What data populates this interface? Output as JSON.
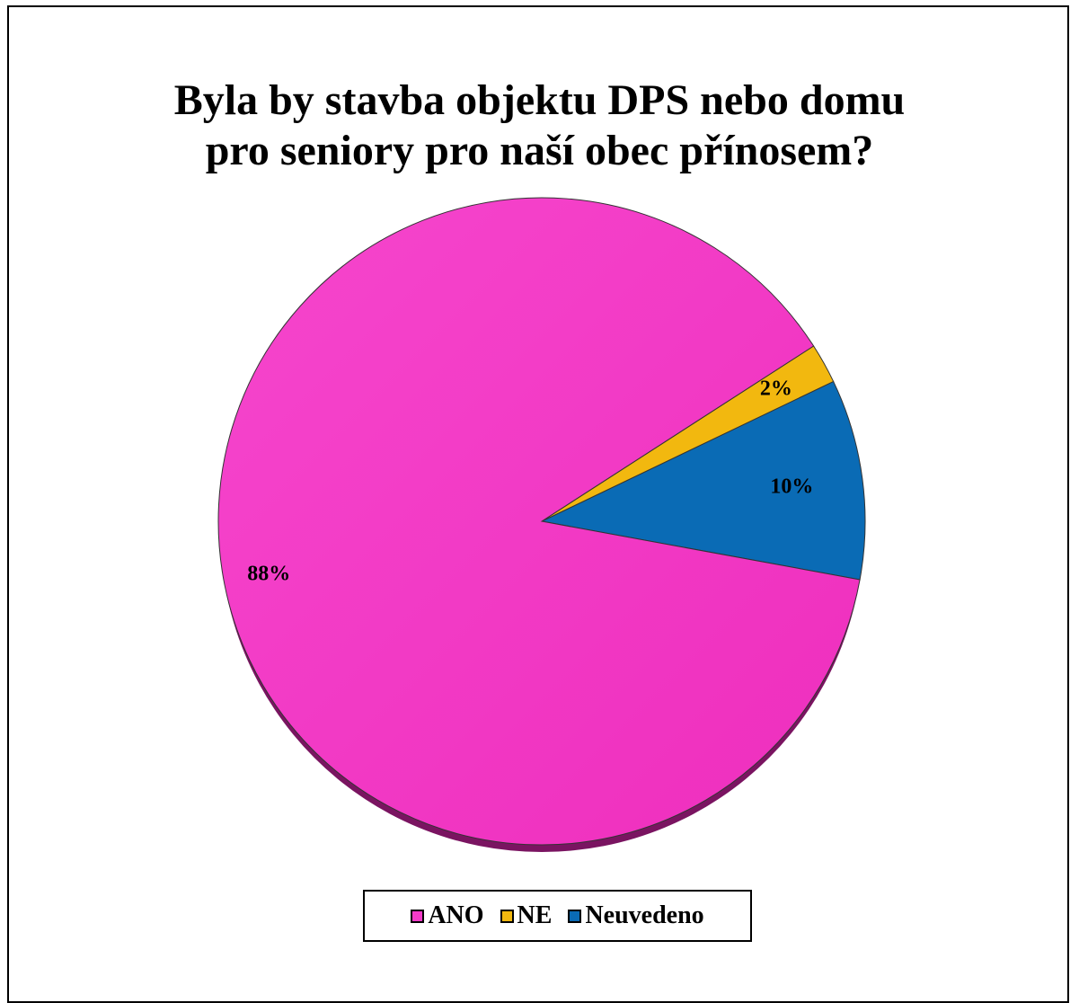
{
  "chart_data": {
    "type": "pie",
    "title_lines": [
      "Byla by stavba objektu DPS nebo domu",
      "pro seniory pro naší obec přínosem?"
    ],
    "slices": [
      {
        "label": "ANO",
        "value": 88,
        "display": "88%",
        "color": "#F53BC9"
      },
      {
        "label": "NE",
        "value": 2,
        "display": "2%",
        "color": "#F2B80F"
      },
      {
        "label": "Neuvedeno",
        "value": 10,
        "display": "10%",
        "color": "#0A6BB5"
      }
    ],
    "legend_position": "bottom",
    "show_data_labels": true
  }
}
